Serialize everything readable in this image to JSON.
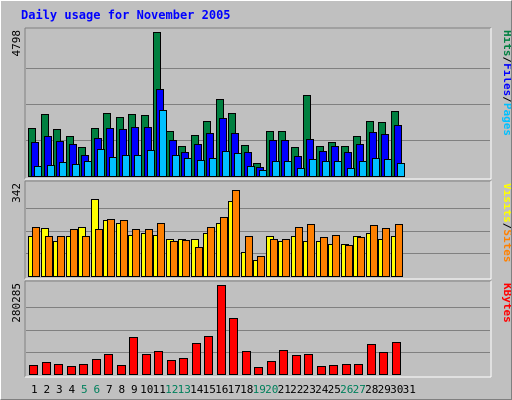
{
  "chart_data": {
    "type": "bar",
    "title": "Daily usage for November 2005",
    "categories": [
      "1",
      "2",
      "3",
      "4",
      "5",
      "6",
      "7",
      "8",
      "9",
      "10",
      "11",
      "12",
      "13",
      "14",
      "15",
      "16",
      "17",
      "18",
      "19",
      "20",
      "21",
      "22",
      "23",
      "24",
      "25",
      "26",
      "27",
      "28",
      "29",
      "30",
      "31"
    ],
    "weekend_days": [
      "5",
      "6",
      "12",
      "13",
      "19",
      "20",
      "26",
      "27"
    ],
    "panels": [
      {
        "id": "hits",
        "ymax_label": "4798",
        "ymax": 4798,
        "series": [
          {
            "name": "Hits",
            "color": "#008040",
            "values": [
              1600,
              2080,
              1560,
              1330,
              970,
              1600,
              2110,
              1980,
              2080,
              2030,
              4798,
              1510,
              1010,
              1370,
              1830,
              2570,
              2110,
              1020,
              420,
              1490,
              1510,
              970,
              2690,
              1000,
              1120,
              1000,
              1320,
              1830,
              1810,
              2180,
              0
            ]
          },
          {
            "name": "Files",
            "color": "#0000ff",
            "values": [
              1120,
              1320,
              1150,
              1060,
              710,
              1260,
              1600,
              1570,
              1620,
              1640,
              2890,
              1190,
              790,
              1060,
              1420,
              1940,
              1440,
              810,
              290,
              1190,
              1190,
              680,
              1220,
              830,
              1010,
              800,
              1060,
              1470,
              1390,
              1700,
              0
            ]
          },
          {
            "name": "Pages",
            "color": "#00c0ff",
            "values": [
              340,
              380,
              450,
              410,
              490,
              890,
              630,
              700,
              700,
              850,
              2200,
              690,
              610,
              530,
              600,
              830,
              750,
              330,
              210,
              490,
              500,
              260,
              550,
              490,
              490,
              260,
              500,
              590,
              570,
              420,
              0
            ]
          }
        ],
        "axis_text": [
          "Pages",
          "/",
          "Files",
          "/",
          "Hits"
        ]
      },
      {
        "id": "visits",
        "ymax_label": "342",
        "ymax": 342,
        "series": [
          {
            "name": "Visits",
            "color": "#ffff00",
            "values": [
              150,
              180,
              130,
              150,
              185,
              290,
              210,
              200,
              155,
              160,
              155,
              140,
              140,
              140,
              160,
              200,
              280,
              90,
              60,
              150,
              130,
              150,
              130,
              130,
              120,
              120,
              150,
              160,
              140,
              150,
              0
            ]
          },
          {
            "name": "Sites",
            "color": "#ff8000",
            "values": [
              185,
              150,
              150,
              175,
              150,
              175,
              215,
              210,
              175,
              175,
              200,
              130,
              135,
              110,
              185,
              220,
              325,
              150,
              75,
              140,
              140,
              185,
              195,
              145,
              155,
              115,
              145,
              190,
              180,
              195,
              0
            ]
          }
        ],
        "axis_text": [
          "Sites",
          "/",
          "Visits"
        ]
      },
      {
        "id": "kbytes",
        "ymax_label": "280285",
        "ymax": 280285,
        "series": [
          {
            "name": "KBytes",
            "color": "#ff0000",
            "values": [
              29000,
              37000,
              30000,
              26000,
              33000,
              47000,
              62000,
              28000,
              115000,
              64000,
              72000,
              45000,
              50000,
              98000,
              119000,
              280285,
              175000,
              71000,
              22000,
              41000,
              77000,
              60000,
              62000,
              24000,
              29000,
              33000,
              30000,
              96000,
              70000,
              102000,
              0
            ]
          }
        ],
        "axis_text": [
          "KBytes"
        ]
      }
    ],
    "colors": {
      "background": "#c0c0c0",
      "title": "#0000ff",
      "weekday_label": "#000000",
      "weekend_label": "#00805c",
      "grid": "#808080"
    },
    "grid": true
  }
}
